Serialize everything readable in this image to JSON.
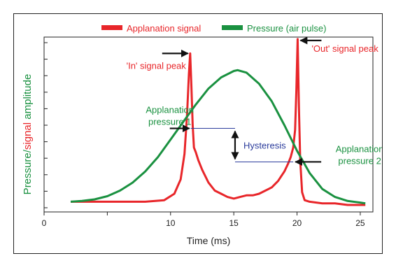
{
  "chart_data": {
    "type": "line",
    "xlabel": "Time (ms)",
    "ylabel_parts": [
      "Pressure",
      "/",
      "signal",
      " amplitude"
    ],
    "ylabel_colors": [
      "#1a9140",
      "#1a9140",
      "#e8262a",
      "#1a9140"
    ],
    "xlim": [
      0,
      26
    ],
    "ylim": [
      0,
      1
    ],
    "x_ticks": [
      0,
      5,
      10,
      15,
      20,
      25
    ],
    "x_tick_labels": [
      "0",
      "",
      "10",
      "15",
      "20",
      "25"
    ],
    "y_tick_count": 11,
    "grid": false,
    "legend": {
      "position": "top",
      "entries": [
        {
          "name": "Applanation signal",
          "color": "#e8262a"
        },
        {
          "name": "Pressure (air pulse)",
          "color": "#1a9140"
        }
      ]
    },
    "series": [
      {
        "name": "Applanation signal",
        "color": "#e8262a",
        "x": [
          2.1,
          4,
          6,
          8,
          9.5,
          10.3,
          10.8,
          11.1,
          11.3,
          11.45,
          11.55,
          11.65,
          11.75,
          11.85,
          12.0,
          12.2,
          12.5,
          13,
          13.5,
          14,
          14.5,
          15,
          15.5,
          16,
          16.5,
          17,
          17.5,
          18,
          18.5,
          19,
          19.3,
          19.5,
          19.7,
          19.85,
          19.95,
          20.05,
          20.15,
          20.25,
          20.4,
          20.6,
          21,
          22,
          23,
          24,
          25,
          25.4
        ],
        "y": [
          0.02,
          0.02,
          0.02,
          0.02,
          0.03,
          0.07,
          0.16,
          0.32,
          0.56,
          0.82,
          0.95,
          0.74,
          0.5,
          0.36,
          0.33,
          0.28,
          0.22,
          0.14,
          0.09,
          0.07,
          0.05,
          0.04,
          0.05,
          0.06,
          0.06,
          0.07,
          0.09,
          0.11,
          0.15,
          0.21,
          0.26,
          0.3,
          0.36,
          0.47,
          0.72,
          1.04,
          0.62,
          0.28,
          0.08,
          0.03,
          0.02,
          0.01,
          0.01,
          0.0,
          0.0,
          0.0
        ]
      },
      {
        "name": "Pressure (air pulse)",
        "color": "#1a9140",
        "x": [
          2.1,
          3,
          4,
          5,
          6,
          7,
          8,
          9,
          10,
          11,
          12,
          13,
          14,
          15,
          15.3,
          16,
          17,
          18,
          19,
          20,
          21,
          22,
          23,
          24,
          25,
          25.4
        ],
        "y": [
          0.02,
          0.025,
          0.035,
          0.055,
          0.09,
          0.14,
          0.21,
          0.3,
          0.41,
          0.52,
          0.63,
          0.73,
          0.8,
          0.84,
          0.845,
          0.83,
          0.76,
          0.65,
          0.5,
          0.34,
          0.2,
          0.1,
          0.05,
          0.025,
          0.015,
          0.01
        ]
      }
    ],
    "annotations": [
      {
        "id": "in-peak",
        "text": "'In' signal peak",
        "color": "#e8262a",
        "point": [
          11.55,
          0.95
        ]
      },
      {
        "id": "out-peak",
        "text": "'Out' signal peak",
        "color": "#e8262a",
        "point": [
          20.05,
          1.04
        ]
      },
      {
        "id": "ap1",
        "lines": [
          "Applanation",
          "pressure 1"
        ],
        "color": "#1a9140",
        "point": [
          11.6,
          0.48
        ]
      },
      {
        "id": "ap2",
        "lines": [
          "Applanation",
          "pressure 2"
        ],
        "color": "#1a9140",
        "point": [
          19.7,
          0.27
        ]
      },
      {
        "id": "hysteresis",
        "text": "Hysteresis",
        "color": "#2b3c9c",
        "y_upper": 0.48,
        "y_lower": 0.27
      }
    ]
  }
}
